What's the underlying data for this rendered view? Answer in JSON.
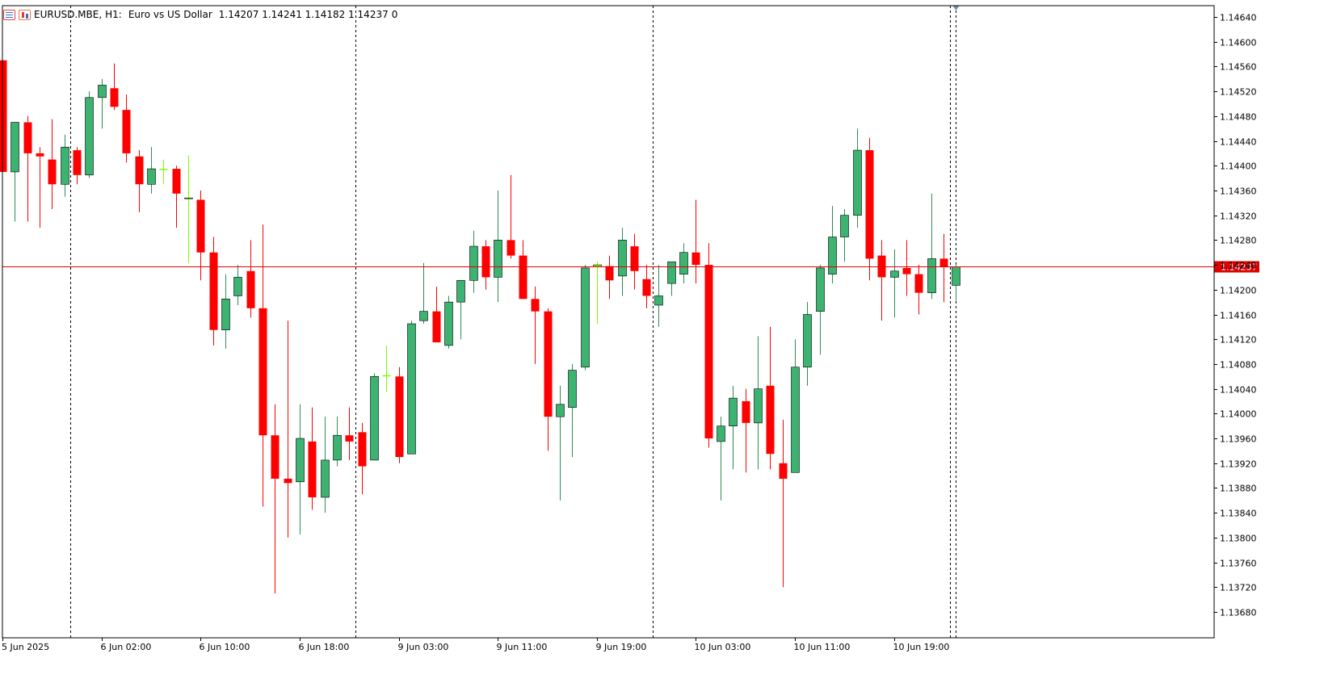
{
  "header": {
    "symbol": "EURUSD.MBE,",
    "timeframe": "H1:",
    "description": "Euro vs US Dollar",
    "ohlc": "1.14207 1.14241 1.14182 1.14237",
    "spread": "0",
    "icons": [
      "list-icon",
      "candles-icon"
    ]
  },
  "colors": {
    "bull_body": "#3cb371",
    "bear_body": "#ff0000",
    "bull_wick": "#2e8b57",
    "bear_wick": "#ff0000",
    "doji": "#7cfc00",
    "price_line": "#e00000",
    "background": "#ffffff",
    "axis": "#000000"
  },
  "current_price": "1.14237",
  "chart_data": {
    "type": "candlestick",
    "xlabel": "",
    "ylabel": "",
    "ylim": [
      1.1364,
      1.1468
    ],
    "y_ticks": [
      "1.14640",
      "1.14600",
      "1.14560",
      "1.14520",
      "1.14480",
      "1.14440",
      "1.14400",
      "1.14360",
      "1.14320",
      "1.14280",
      "1.14240",
      "1.14200",
      "1.14160",
      "1.14120",
      "1.14080",
      "1.14040",
      "1.14000",
      "1.13960",
      "1.13920",
      "1.13880",
      "1.13840",
      "1.13800",
      "1.13760",
      "1.13720",
      "1.13680"
    ],
    "x_tick_labels": [
      "5 Jun 2025",
      "6 Jun 02:00",
      "6 Jun 10:00",
      "6 Jun 18:00",
      "9 Jun 03:00",
      "9 Jun 11:00",
      "9 Jun 19:00",
      "10 Jun 03:00",
      "10 Jun 11:00",
      "10 Jun 19:00"
    ],
    "x_tick_candle_index": [
      0,
      8,
      16,
      24,
      32,
      40,
      48,
      56,
      64,
      72
    ],
    "session_separator_candle_index": [
      5.5,
      28.5,
      52.5,
      76.5
    ],
    "candles": [
      {
        "o": 1.1457,
        "h": 1.1457,
        "l": 1.1439,
        "c": 1.1439
      },
      {
        "o": 1.1439,
        "h": 1.1447,
        "l": 1.1431,
        "c": 1.1447
      },
      {
        "o": 1.1447,
        "h": 1.1448,
        "l": 1.1431,
        "c": 1.1442
      },
      {
        "o": 1.1442,
        "h": 1.1443,
        "l": 1.143,
        "c": 1.14415
      },
      {
        "o": 1.1441,
        "h": 1.14475,
        "l": 1.1433,
        "c": 1.1437
      },
      {
        "o": 1.1437,
        "h": 1.1445,
        "l": 1.1435,
        "c": 1.1443
      },
      {
        "o": 1.14425,
        "h": 1.1443,
        "l": 1.1437,
        "c": 1.14385
      },
      {
        "o": 1.14385,
        "h": 1.1452,
        "l": 1.1438,
        "c": 1.1451
      },
      {
        "o": 1.1451,
        "h": 1.1454,
        "l": 1.1446,
        "c": 1.1453
      },
      {
        "o": 1.14525,
        "h": 1.14565,
        "l": 1.1449,
        "c": 1.14495
      },
      {
        "o": 1.1449,
        "h": 1.14515,
        "l": 1.14405,
        "c": 1.1442
      },
      {
        "o": 1.14415,
        "h": 1.14425,
        "l": 1.14325,
        "c": 1.1437
      },
      {
        "o": 1.1437,
        "h": 1.1443,
        "l": 1.14355,
        "c": 1.14395
      },
      {
        "o": 1.14395,
        "h": 1.1441,
        "l": 1.1437,
        "c": 1.14393
      },
      {
        "o": 1.14395,
        "h": 1.144,
        "l": 1.143,
        "c": 1.14355
      },
      {
        "o": 1.14348,
        "h": 1.14417,
        "l": 1.14243,
        "c": 1.14348
      },
      {
        "o": 1.14345,
        "h": 1.1436,
        "l": 1.14215,
        "c": 1.1426
      },
      {
        "o": 1.1426,
        "h": 1.14285,
        "l": 1.1411,
        "c": 1.14135
      },
      {
        "o": 1.14135,
        "h": 1.14225,
        "l": 1.14105,
        "c": 1.14185
      },
      {
        "o": 1.1419,
        "h": 1.1424,
        "l": 1.14175,
        "c": 1.1422
      },
      {
        "o": 1.1423,
        "h": 1.1428,
        "l": 1.14155,
        "c": 1.1417
      },
      {
        "o": 1.1417,
        "h": 1.14305,
        "l": 1.1385,
        "c": 1.13965
      },
      {
        "o": 1.13965,
        "h": 1.14015,
        "l": 1.1371,
        "c": 1.13895
      },
      {
        "o": 1.13895,
        "h": 1.1415,
        "l": 1.138,
        "c": 1.13888
      },
      {
        "o": 1.1389,
        "h": 1.14015,
        "l": 1.13805,
        "c": 1.1396
      },
      {
        "o": 1.13955,
        "h": 1.1401,
        "l": 1.13845,
        "c": 1.13865
      },
      {
        "o": 1.13865,
        "h": 1.13995,
        "l": 1.1384,
        "c": 1.13925
      },
      {
        "o": 1.13925,
        "h": 1.13995,
        "l": 1.13915,
        "c": 1.13965
      },
      {
        "o": 1.13965,
        "h": 1.1401,
        "l": 1.13925,
        "c": 1.13955
      },
      {
        "o": 1.1397,
        "h": 1.13985,
        "l": 1.1387,
        "c": 1.13915
      },
      {
        "o": 1.13925,
        "h": 1.14065,
        "l": 1.13925,
        "c": 1.1406
      },
      {
        "o": 1.14062,
        "h": 1.1411,
        "l": 1.14035,
        "c": 1.1406
      },
      {
        "o": 1.1406,
        "h": 1.14075,
        "l": 1.1392,
        "c": 1.1393
      },
      {
        "o": 1.13935,
        "h": 1.1415,
        "l": 1.13935,
        "c": 1.14145
      },
      {
        "o": 1.1415,
        "h": 1.14243,
        "l": 1.14145,
        "c": 1.14165
      },
      {
        "o": 1.14165,
        "h": 1.14205,
        "l": 1.14115,
        "c": 1.14115
      },
      {
        "o": 1.1411,
        "h": 1.1419,
        "l": 1.14105,
        "c": 1.1418
      },
      {
        "o": 1.1418,
        "h": 1.1421,
        "l": 1.1412,
        "c": 1.14215
      },
      {
        "o": 1.14215,
        "h": 1.14295,
        "l": 1.14195,
        "c": 1.1427
      },
      {
        "o": 1.1427,
        "h": 1.1428,
        "l": 1.142,
        "c": 1.1422
      },
      {
        "o": 1.1422,
        "h": 1.1436,
        "l": 1.1418,
        "c": 1.1428
      },
      {
        "o": 1.1428,
        "h": 1.14385,
        "l": 1.1425,
        "c": 1.14255
      },
      {
        "o": 1.14255,
        "h": 1.1428,
        "l": 1.14195,
        "c": 1.14185
      },
      {
        "o": 1.14185,
        "h": 1.14205,
        "l": 1.1408,
        "c": 1.14165
      },
      {
        "o": 1.14165,
        "h": 1.1417,
        "l": 1.1394,
        "c": 1.13995
      },
      {
        "o": 1.13995,
        "h": 1.14045,
        "l": 1.1386,
        "c": 1.14015
      },
      {
        "o": 1.1401,
        "h": 1.1408,
        "l": 1.1393,
        "c": 1.1407
      },
      {
        "o": 1.14075,
        "h": 1.1424,
        "l": 1.1407,
        "c": 1.14235
      },
      {
        "o": 1.14237,
        "h": 1.14245,
        "l": 1.14145,
        "c": 1.1424
      },
      {
        "o": 1.14238,
        "h": 1.14255,
        "l": 1.14185,
        "c": 1.14215
      },
      {
        "o": 1.14222,
        "h": 1.143,
        "l": 1.1419,
        "c": 1.1428
      },
      {
        "o": 1.1427,
        "h": 1.1429,
        "l": 1.142,
        "c": 1.1423
      },
      {
        "o": 1.14217,
        "h": 1.1424,
        "l": 1.1417,
        "c": 1.1419
      },
      {
        "o": 1.14175,
        "h": 1.1424,
        "l": 1.1414,
        "c": 1.1419
      },
      {
        "o": 1.1421,
        "h": 1.14245,
        "l": 1.1419,
        "c": 1.14245
      },
      {
        "o": 1.14225,
        "h": 1.14275,
        "l": 1.1421,
        "c": 1.1426
      },
      {
        "o": 1.1426,
        "h": 1.14345,
        "l": 1.1421,
        "c": 1.1424
      },
      {
        "o": 1.1424,
        "h": 1.14275,
        "l": 1.13945,
        "c": 1.1396
      },
      {
        "o": 1.13955,
        "h": 1.13995,
        "l": 1.1386,
        "c": 1.1398
      },
      {
        "o": 1.1398,
        "h": 1.14045,
        "l": 1.1391,
        "c": 1.14025
      },
      {
        "o": 1.1402,
        "h": 1.1404,
        "l": 1.13905,
        "c": 1.13985
      },
      {
        "o": 1.13985,
        "h": 1.14125,
        "l": 1.1391,
        "c": 1.1404
      },
      {
        "o": 1.14045,
        "h": 1.1414,
        "l": 1.1391,
        "c": 1.13935
      },
      {
        "o": 1.1392,
        "h": 1.1399,
        "l": 1.1372,
        "c": 1.13895
      },
      {
        "o": 1.13905,
        "h": 1.1412,
        "l": 1.13905,
        "c": 1.14075
      },
      {
        "o": 1.14075,
        "h": 1.1418,
        "l": 1.14045,
        "c": 1.1416
      },
      {
        "o": 1.14165,
        "h": 1.1424,
        "l": 1.14095,
        "c": 1.14235
      },
      {
        "o": 1.14225,
        "h": 1.14335,
        "l": 1.1421,
        "c": 1.14285
      },
      {
        "o": 1.14285,
        "h": 1.1433,
        "l": 1.14245,
        "c": 1.1432
      },
      {
        "o": 1.1432,
        "h": 1.1446,
        "l": 1.143,
        "c": 1.14425
      },
      {
        "o": 1.14425,
        "h": 1.14445,
        "l": 1.14215,
        "c": 1.1425
      },
      {
        "o": 1.14255,
        "h": 1.1428,
        "l": 1.1415,
        "c": 1.1422
      },
      {
        "o": 1.1422,
        "h": 1.14265,
        "l": 1.14155,
        "c": 1.1423
      },
      {
        "o": 1.14235,
        "h": 1.1428,
        "l": 1.1419,
        "c": 1.14225
      },
      {
        "o": 1.14225,
        "h": 1.1424,
        "l": 1.1416,
        "c": 1.14195
      },
      {
        "o": 1.14195,
        "h": 1.14355,
        "l": 1.14185,
        "c": 1.1425
      },
      {
        "o": 1.1425,
        "h": 1.1429,
        "l": 1.1418,
        "c": 1.14237
      },
      {
        "o": 1.14207,
        "h": 1.14241,
        "l": 1.14182,
        "c": 1.14237
      }
    ]
  }
}
